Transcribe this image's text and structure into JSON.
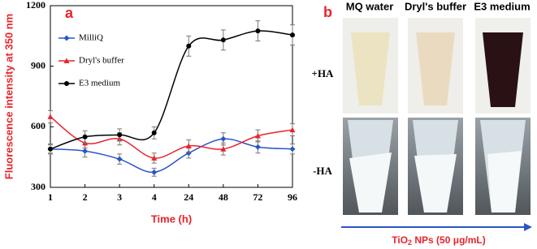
{
  "chart_data": {
    "type": "line",
    "panel_label": "a",
    "x_label": "Time (h)",
    "y_label": "Fluorescence intensity at 350 nm",
    "categories": [
      "1",
      "2",
      "3",
      "4",
      "24",
      "48",
      "72",
      "96"
    ],
    "series": [
      {
        "name": "MilliQ",
        "color": "#2a56c6",
        "marker": "diamond",
        "values": [
          490,
          480,
          440,
          375,
          470,
          540,
          500,
          490
        ],
        "errors": [
          25,
          30,
          25,
          20,
          25,
          30,
          30,
          25
        ]
      },
      {
        "name": "Dryl's buffer",
        "color": "#e8242b",
        "marker": "triangle",
        "values": [
          650,
          520,
          540,
          445,
          505,
          490,
          555,
          585
        ],
        "errors": [
          30,
          25,
          30,
          25,
          30,
          30,
          30,
          30
        ]
      },
      {
        "name": "E3 medium",
        "color": "#000000",
        "marker": "circle",
        "values": [
          490,
          550,
          560,
          570,
          1000,
          1030,
          1075,
          1055
        ],
        "errors": [
          20,
          30,
          30,
          30,
          50,
          50,
          50,
          50
        ]
      }
    ],
    "ylim": [
      300,
      1200
    ],
    "yticks": [
      300,
      600,
      900,
      1200
    ],
    "legend": "upper-left"
  },
  "panel_b": {
    "label": "b",
    "columns": [
      "MQ water",
      "Dryl's buffer",
      "E3 medium"
    ],
    "rows": [
      "+HA",
      "-HA"
    ],
    "caption": [
      "TiO",
      "2",
      " NPs (50 μg/mL)"
    ]
  }
}
